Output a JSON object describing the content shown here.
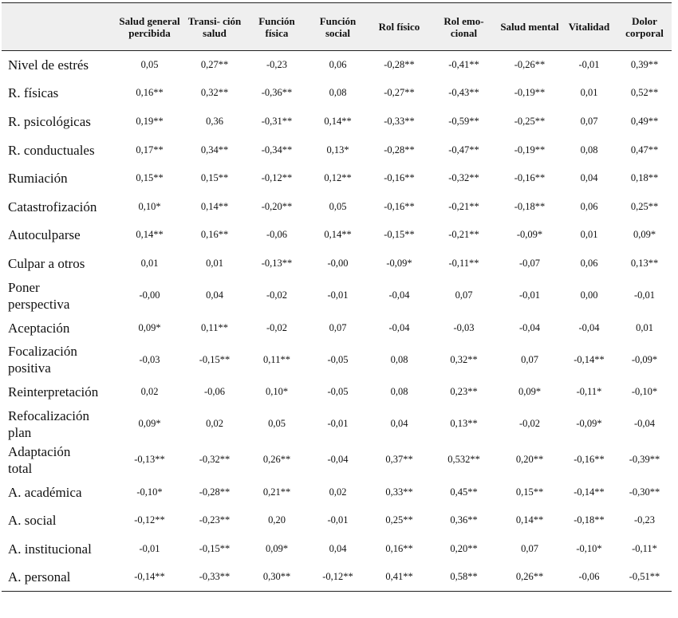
{
  "table": {
    "headers": [
      "",
      "Salud general percibida",
      "Transi- ción salud",
      "Función física",
      "Función social",
      "Rol físico",
      "Rol emo- cional",
      "Salud mental",
      "Vitalidad",
      "Dolor corporal"
    ],
    "rows": [
      {
        "label": "Nivel de estrés",
        "values": [
          "0,05",
          "0,27**",
          "-0,23",
          "0,06",
          "-0,28**",
          "-0,41**",
          "-0,26**",
          "-0,01",
          "0,39**"
        ]
      },
      {
        "label": "R. físicas",
        "values": [
          "0,16**",
          "0,32**",
          "-0,36**",
          "0,08",
          "-0,27**",
          "-0,43**",
          "-0,19**",
          "0,01",
          "0,52**"
        ]
      },
      {
        "label": "R. psicológicas",
        "values": [
          "0,19**",
          "0,36",
          "-0,31**",
          "0,14**",
          "-0,33**",
          "-0,59**",
          "-0,25**",
          "0,07",
          "0,49**"
        ]
      },
      {
        "label": "R. conductuales",
        "values": [
          "0,17**",
          "0,34**",
          "-0,34**",
          "0,13*",
          "-0,28**",
          "-0,47**",
          "-0,19**",
          "0,08",
          "0,47**"
        ]
      },
      {
        "label": "Rumiación",
        "values": [
          "0,15**",
          "0,15**",
          "-0,12**",
          "0,12**",
          "-0,16**",
          "-0,32**",
          "-0,16**",
          "0,04",
          "0,18**"
        ]
      },
      {
        "label": "Catastrofización",
        "values": [
          "0,10*",
          "0,14**",
          "-0,20**",
          "0,05",
          "-0,16**",
          "-0,21**",
          "-0,18**",
          "0,06",
          "0,25**"
        ]
      },
      {
        "label": "Autoculparse",
        "values": [
          "0,14**",
          "0,16**",
          "-0,06",
          "0,14**",
          "-0,15**",
          "-0,21**",
          "-0,09*",
          "0,01",
          "0,09*"
        ]
      },
      {
        "label": "Culpar a otros",
        "values": [
          "0,01",
          "0,01",
          "-0,13**",
          "-0,00",
          "-0,09*",
          "-0,11**",
          "-0,07",
          "0,06",
          "0,13**"
        ]
      },
      {
        "label": "Poner perspectiva",
        "values": [
          "-0,00",
          "0,04",
          "-0,02",
          "-0,01",
          "-0,04",
          "0,07",
          "-0,01",
          "0,00",
          "-0,01"
        ]
      },
      {
        "label": "Aceptación",
        "values": [
          "0,09*",
          "0,11**",
          "-0,02",
          "0,07",
          "-0,04",
          "-0,03",
          "-0,04",
          "-0,04",
          "0,01"
        ]
      },
      {
        "label": "Focalización positiva",
        "values": [
          "-0,03",
          "-0,15**",
          "0,11**",
          "-0,05",
          "0,08",
          "0,32**",
          "0,07",
          "-0,14**",
          "-0,09*"
        ]
      },
      {
        "label": "Reinterpretación",
        "values": [
          "0,02",
          "-0,06",
          "0,10*",
          "-0,05",
          "0,08",
          "0,23**",
          "0,09*",
          "-0,11*",
          "-0,10*"
        ]
      },
      {
        "label": "Refocalización plan",
        "values": [
          "0,09*",
          "0,02",
          "0,05",
          "-0,01",
          "0,04",
          "0,13**",
          "-0,02",
          "-0,09*",
          "-0,04"
        ]
      },
      {
        "label": "Adaptación total",
        "values": [
          "-0,13**",
          "-0,32**",
          "0,26**",
          "-0,04",
          "0,37**",
          "0,532**",
          "0,20**",
          "-0,16**",
          "-0,39**"
        ]
      },
      {
        "label": "A. académica",
        "values": [
          "-0,10*",
          "-0,28**",
          "0,21**",
          "0,02",
          "0,33**",
          "0,45**",
          "0,15**",
          "-0,14**",
          "-0,30**"
        ]
      },
      {
        "label": "A. social",
        "values": [
          "-0,12**",
          "-0,23**",
          "0,20",
          "-0,01",
          "0,25**",
          "0,36**",
          "0,14**",
          "-0,18**",
          "-0,23"
        ]
      },
      {
        "label": "A. institucional",
        "values": [
          "-0,01",
          "-0,15**",
          "0,09*",
          "0,04",
          "0,16**",
          "0,20**",
          "0,07",
          "-0,10*",
          "-0,11*"
        ]
      },
      {
        "label": "A. personal",
        "values": [
          "-0,14**",
          "-0,33**",
          "0,30**",
          "-0,12**",
          "0,41**",
          "0,58**",
          "0,26**",
          "-0,06",
          "-0,51**"
        ]
      }
    ]
  }
}
